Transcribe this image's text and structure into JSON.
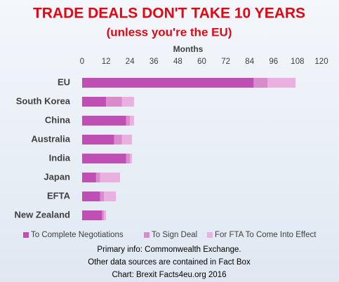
{
  "chart_data": {
    "type": "bar",
    "orientation": "horizontal",
    "stacked": true,
    "title": "TRADE DEALS DON'T TAKE 10 YEARS",
    "subtitle": "(unless you're the EU)",
    "x_label": "Months",
    "categories": [
      "EU",
      "South Korea",
      "China",
      "Australia",
      "India",
      "Japan",
      "EFTA",
      "New Zealand"
    ],
    "series": [
      {
        "name": "To Complete Negotiations",
        "color": "#c04fb5",
        "values": [
          86,
          12,
          22,
          16,
          22,
          7,
          9,
          10
        ]
      },
      {
        "name": "To Sign Deal",
        "color": "#d98bcb",
        "values": [
          7,
          8,
          2,
          4,
          2,
          2,
          2,
          1
        ]
      },
      {
        "name": "For FTA To Come Into Effect",
        "color": "#eab0df",
        "values": [
          14,
          6,
          2,
          5,
          1,
          10,
          6,
          1
        ]
      }
    ],
    "xlim": [
      0,
      120
    ],
    "xticks": [
      0,
      12,
      24,
      36,
      48,
      60,
      72,
      84,
      96,
      108,
      120
    ],
    "grid": false,
    "legend": "bottom",
    "notes": [
      "Primary info: Commonwealth Exchange.",
      "Other data sources are contained in Fact Box",
      "Chart: Brexit Facts4eu.org 2016"
    ]
  }
}
